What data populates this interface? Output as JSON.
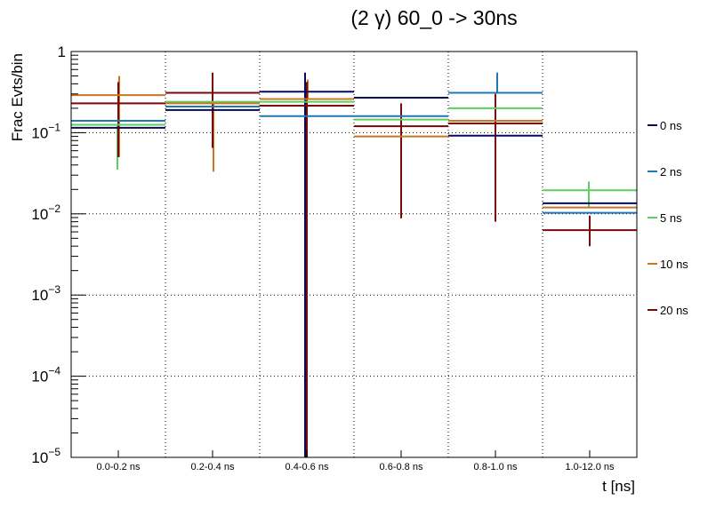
{
  "chart_data": {
    "type": "line",
    "title": "(2 γ) 60_0 -> 30ns",
    "xlabel": "t [ns]",
    "ylabel": "Frac Evts/bin",
    "yscale": "log",
    "ylim": [
      1e-05,
      1
    ],
    "yticks": [
      {
        "value": 1,
        "base": "1",
        "exp": ""
      },
      {
        "value": 0.1,
        "base": "10",
        "exp": "−1"
      },
      {
        "value": 0.01,
        "base": "10",
        "exp": "−2"
      },
      {
        "value": 0.001,
        "base": "10",
        "exp": "−3"
      },
      {
        "value": 0.0001,
        "base": "10",
        "exp": "−4"
      },
      {
        "value": 1e-05,
        "base": "10",
        "exp": "−5"
      }
    ],
    "categories": [
      "0.0-0.2 ns",
      "0.2-0.4 ns",
      "0.4-0.6 ns",
      "0.6-0.8 ns",
      "0.8-1.0 ns",
      "1.0-12.0 ns"
    ],
    "grid": true,
    "legend_position": "right",
    "series": [
      {
        "name": "0 ns",
        "color": "#0a0a5c",
        "values": [
          0.115,
          0.19,
          0.32,
          0.27,
          0.092,
          0.0135
        ],
        "err_low": [
          null,
          null,
          1e-05,
          null,
          null,
          null
        ],
        "err_high": [
          null,
          null,
          0.55,
          null,
          null,
          null
        ]
      },
      {
        "name": "2 ns",
        "color": "#1f77b4",
        "values": [
          0.14,
          0.21,
          0.16,
          0.16,
          0.31,
          0.0103
        ],
        "err_low": [
          null,
          null,
          null,
          null,
          null,
          null
        ],
        "err_high": [
          null,
          null,
          null,
          null,
          0.55,
          null
        ]
      },
      {
        "name": "5 ns",
        "color": "#5fce5f",
        "values": [
          0.125,
          0.24,
          0.24,
          0.145,
          0.2,
          0.0195
        ],
        "err_low": [
          0.035,
          null,
          null,
          null,
          null,
          0.012
        ],
        "err_high": [
          null,
          null,
          null,
          null,
          null,
          0.025
        ]
      },
      {
        "name": "10 ns",
        "color": "#c87820",
        "values": [
          0.29,
          0.23,
          0.26,
          0.09,
          0.14,
          0.012
        ],
        "err_low": [
          0.05,
          0.033,
          null,
          null,
          null,
          null
        ],
        "err_high": [
          0.5,
          null,
          0.45,
          null,
          null,
          null
        ]
      },
      {
        "name": "20 ns",
        "color": "#7a0a0a",
        "values": [
          0.23,
          0.31,
          0.215,
          0.12,
          0.13,
          0.0063
        ],
        "err_low": [
          0.05,
          0.065,
          1e-05,
          0.0088,
          0.008,
          0.004
        ],
        "err_high": [
          0.42,
          0.55,
          0.42,
          0.23,
          0.3,
          0.0095
        ]
      }
    ]
  }
}
